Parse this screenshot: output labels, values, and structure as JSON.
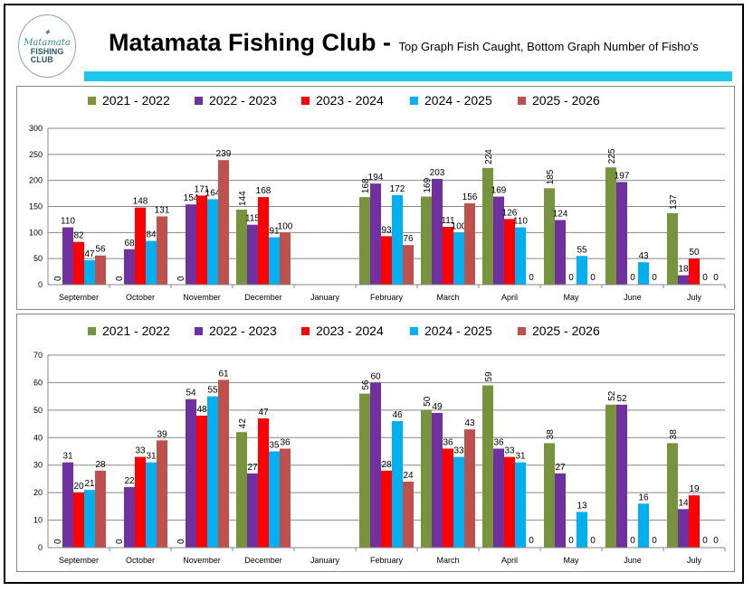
{
  "header": {
    "logo_text": "Matamata FISHING CLUB",
    "title": "Matamata Fishing Club -",
    "subtitle": "Top Graph Fish Caught, Bottom Graph Number of Fisho's"
  },
  "colors": {
    "accent_bar": "#1ec8ea"
  },
  "chart_data": [
    {
      "type": "bar",
      "title": "Fish Caught",
      "categories": [
        "September",
        "October",
        "November",
        "December",
        "January",
        "February",
        "March",
        "April",
        "May",
        "June",
        "July"
      ],
      "ylim": [
        0,
        300
      ],
      "yticks": [
        0,
        50,
        100,
        150,
        200,
        250,
        300
      ],
      "legend_position": "top",
      "grid": true,
      "series": [
        {
          "name": "2021 - 2022",
          "color": "#77933c",
          "values": [
            0,
            0,
            0,
            144,
            null,
            168,
            169,
            224,
            185,
            225,
            137
          ]
        },
        {
          "name": "2022 - 2023",
          "color": "#7030a0",
          "values": [
            110,
            68,
            154,
            115,
            null,
            194,
            203,
            169,
            124,
            197,
            18
          ]
        },
        {
          "name": "2023 - 2024",
          "color": "#ff0000",
          "values": [
            82,
            148,
            171,
            168,
            null,
            93,
            111,
            126,
            0,
            0,
            50
          ]
        },
        {
          "name": "2024 - 2025",
          "color": "#00b0f0",
          "values": [
            47,
            84,
            164,
            91,
            null,
            172,
            100,
            110,
            55,
            43,
            0
          ]
        },
        {
          "name": "2025 - 2026",
          "color": "#c0504d",
          "values": [
            56,
            131,
            239,
            100,
            null,
            76,
            156,
            0,
            0,
            0,
            0
          ]
        }
      ]
    },
    {
      "type": "bar",
      "title": "Number of Fisho's",
      "categories": [
        "September",
        "October",
        "November",
        "December",
        "January",
        "February",
        "March",
        "April",
        "May",
        "June",
        "July"
      ],
      "ylim": [
        0,
        70
      ],
      "yticks": [
        0,
        10,
        20,
        30,
        40,
        50,
        60,
        70
      ],
      "legend_position": "top",
      "grid": true,
      "series": [
        {
          "name": "2021 - 2022",
          "color": "#77933c",
          "values": [
            0,
            0,
            0,
            42,
            null,
            56,
            50,
            59,
            38,
            52,
            38
          ]
        },
        {
          "name": "2022 - 2023",
          "color": "#7030a0",
          "values": [
            31,
            22,
            54,
            27,
            null,
            60,
            49,
            36,
            27,
            52,
            14
          ]
        },
        {
          "name": "2023 - 2024",
          "color": "#ff0000",
          "values": [
            20,
            33,
            48,
            47,
            null,
            28,
            36,
            33,
            0,
            0,
            19
          ]
        },
        {
          "name": "2024 - 2025",
          "color": "#00b0f0",
          "values": [
            21,
            31,
            55,
            35,
            null,
            46,
            33,
            31,
            13,
            16,
            0
          ]
        },
        {
          "name": "2025 - 2026",
          "color": "#c0504d",
          "values": [
            28,
            39,
            61,
            36,
            null,
            24,
            43,
            0,
            0,
            0,
            0
          ]
        }
      ]
    }
  ]
}
